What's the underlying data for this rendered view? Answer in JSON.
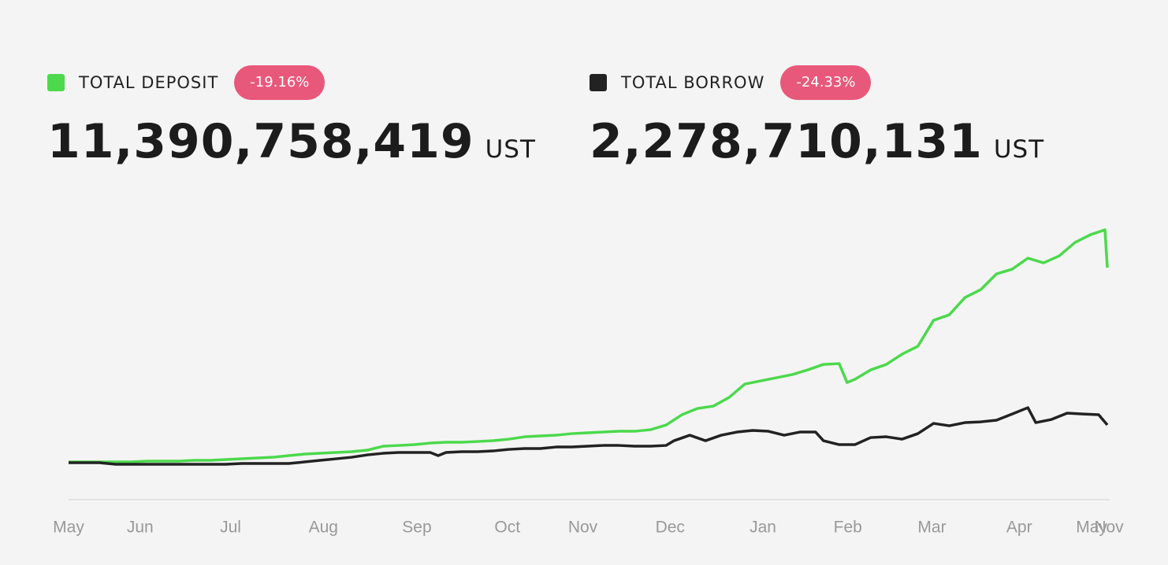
{
  "chart_data": {
    "type": "line",
    "xlim": [
      0,
      331
    ],
    "ylim": [
      -2050000000,
      14140000000
    ],
    "xticks": [
      {
        "value": 0,
        "label": "May"
      },
      {
        "value": 22.75,
        "label": "Jun"
      },
      {
        "value": 51.5,
        "label": "Jul"
      },
      {
        "value": 81,
        "label": "Aug"
      },
      {
        "value": 110.75,
        "label": "Sep"
      },
      {
        "value": 139.5,
        "label": "Oct"
      },
      {
        "value": 163.5,
        "label": "Nov"
      },
      {
        "value": 191.25,
        "label": "Dec"
      },
      {
        "value": 220.75,
        "label": "Jan"
      },
      {
        "value": 247.75,
        "label": "Feb"
      },
      {
        "value": 274.5,
        "label": "Mar"
      },
      {
        "value": 302.25,
        "label": "Apr"
      },
      {
        "value": 325.25,
        "label": "May"
      },
      {
        "value": 330.75,
        "label": "Nov"
      }
    ],
    "series": [
      {
        "name": "TOTAL DEPOSIT",
        "color": "#4cd94c",
        "change": "-19.16%",
        "total": "11,390,758,419",
        "unit": "UST",
        "x": [
          0,
          5,
          10,
          15,
          20,
          25,
          30,
          35,
          40,
          45,
          50,
          55,
          60,
          65,
          70,
          75,
          80,
          85,
          90,
          95,
          100,
          105,
          110,
          115,
          120,
          125,
          130,
          135,
          140,
          145,
          150,
          155,
          160,
          165,
          170,
          175,
          180,
          185,
          190,
          195,
          200,
          205,
          210,
          215,
          220,
          225,
          230,
          235,
          240,
          245,
          247.5,
          250,
          255,
          260,
          265,
          270,
          275,
          280,
          285,
          290,
          295,
          300,
          305,
          310,
          315,
          320,
          325,
          329.5,
          330.25
        ],
        "values": [
          137000000,
          137000000,
          137000000,
          137000000,
          137000000,
          182000000,
          182000000,
          182000000,
          228000000,
          228000000,
          274000000,
          319000000,
          365000000,
          410000000,
          502000000,
          593000000,
          638000000,
          684000000,
          730000000,
          821000000,
          1049000000,
          1094000000,
          1140000000,
          1231000000,
          1277000000,
          1277000000,
          1322000000,
          1368000000,
          1459000000,
          1596000000,
          1642000000,
          1687000000,
          1778000000,
          1824000000,
          1870000000,
          1915000000,
          1915000000,
          2006000000,
          2280000000,
          2873000000,
          3238000000,
          3374000000,
          3876000000,
          4651000000,
          4834000000,
          5016000000,
          5198000000,
          5472000000,
          5791000000,
          5837000000,
          4742000000,
          4925000000,
          5472000000,
          5791000000,
          6384000000,
          6840000000,
          8345000000,
          8664000000,
          9667000000,
          10123000000,
          11035000000,
          11309000000,
          11947000000,
          11674000000,
          12084000000,
          12859000000,
          13315000000,
          13589000000,
          11391000000
        ]
      },
      {
        "name": "TOTAL BORROW",
        "color": "#222222",
        "change": "-24.33%",
        "total": "2,278,710,131",
        "unit": "UST",
        "x": [
          0,
          5,
          10,
          15,
          20,
          25,
          30,
          35,
          40,
          45,
          50,
          55,
          60,
          65,
          70,
          75,
          80,
          85,
          90,
          95,
          100,
          105,
          110,
          115,
          117.5,
          120,
          125,
          130,
          135,
          140,
          145,
          150,
          155,
          160,
          165,
          170,
          175,
          180,
          185,
          190,
          192.5,
          197.5,
          202.5,
          207.5,
          212.5,
          217.5,
          222.5,
          227.5,
          232.5,
          237.5,
          240,
          245,
          250,
          255,
          260,
          265,
          270,
          275,
          280,
          285,
          290,
          295,
          300,
          305,
          307.5,
          312.5,
          317.5,
          322.5,
          327.5,
          330.25
        ],
        "values": [
          91000000,
          91000000,
          91000000,
          0,
          0,
          0,
          0,
          0,
          0,
          0,
          0,
          46000000,
          46000000,
          46000000,
          46000000,
          137000000,
          228000000,
          319000000,
          410000000,
          547000000,
          638000000,
          684000000,
          684000000,
          684000000,
          502000000,
          684000000,
          730000000,
          730000000,
          775000000,
          866000000,
          912000000,
          912000000,
          1003000000,
          1003000000,
          1049000000,
          1094000000,
          1094000000,
          1049000000,
          1049000000,
          1094000000,
          1368000000,
          1687000000,
          1368000000,
          1687000000,
          1870000000,
          1961000000,
          1915000000,
          1687000000,
          1870000000,
          1870000000,
          1368000000,
          1140000000,
          1140000000,
          1550000000,
          1596000000,
          1459000000,
          1778000000,
          2371000000,
          2234000000,
          2417000000,
          2462000000,
          2554000000,
          2918000000,
          3283000000,
          2417000000,
          2599000000,
          2964000000,
          2918000000,
          2873000000,
          2280000000
        ]
      }
    ]
  }
}
